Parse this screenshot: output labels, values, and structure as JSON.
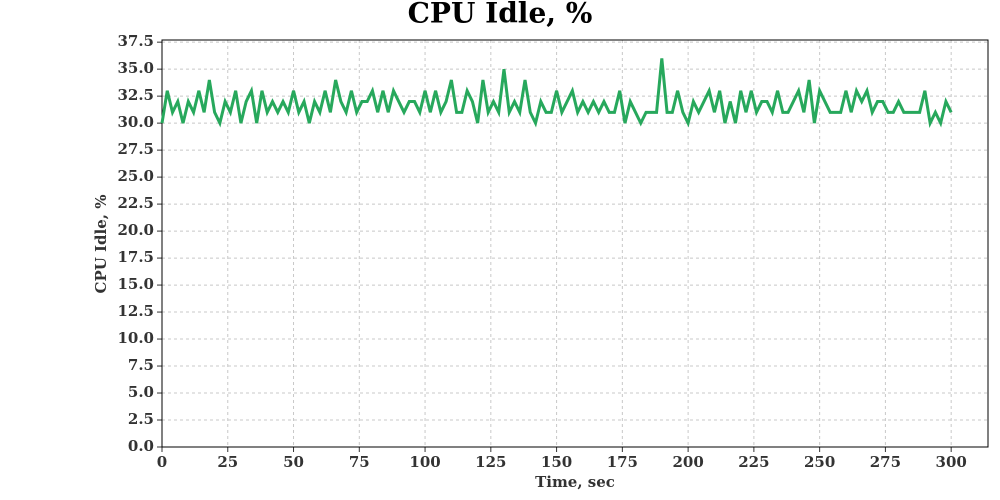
{
  "chart_data": {
    "type": "line",
    "title": "CPU Idle, %",
    "x_label": "Time, sec",
    "y_label": "CPU Idle, %",
    "x": [
      0,
      2,
      4,
      6,
      8,
      10,
      12,
      14,
      16,
      18,
      20,
      22,
      24,
      26,
      28,
      30,
      32,
      34,
      36,
      38,
      40,
      42,
      44,
      46,
      48,
      50,
      52,
      54,
      56,
      58,
      60,
      62,
      64,
      66,
      68,
      70,
      72,
      74,
      76,
      78,
      80,
      82,
      84,
      86,
      88,
      90,
      92,
      94,
      96,
      98,
      100,
      102,
      104,
      106,
      108,
      110,
      112,
      114,
      116,
      118,
      120,
      122,
      124,
      126,
      128,
      130,
      132,
      134,
      136,
      138,
      140,
      142,
      144,
      146,
      148,
      150,
      152,
      154,
      156,
      158,
      160,
      162,
      164,
      166,
      168,
      170,
      172,
      174,
      176,
      178,
      180,
      182,
      184,
      186,
      188,
      190,
      192,
      194,
      196,
      198,
      200,
      202,
      204,
      206,
      208,
      210,
      212,
      214,
      216,
      218,
      220,
      222,
      224,
      226,
      228,
      230,
      232,
      234,
      236,
      238,
      240,
      242,
      244,
      246,
      248,
      250,
      252,
      254,
      256,
      258,
      260,
      262,
      264,
      266,
      268,
      270,
      272,
      274,
      276,
      278,
      280,
      282,
      284,
      286,
      288,
      290,
      292,
      294,
      296,
      298,
      300
    ],
    "series": [
      {
        "name": "CPU Idle",
        "color": "#27a85c",
        "values": [
          30,
          33,
          31,
          32,
          30,
          32,
          31,
          33,
          31,
          34,
          31,
          30,
          32,
          31,
          33,
          30,
          32,
          33,
          30,
          33,
          31,
          32,
          31,
          32,
          31,
          33,
          31,
          32,
          30,
          32,
          31,
          33,
          31,
          34,
          32,
          31,
          33,
          31,
          32,
          32,
          33,
          31,
          33,
          31,
          33,
          32,
          31,
          32,
          32,
          31,
          33,
          31,
          33,
          31,
          32,
          34,
          31,
          31,
          33,
          32,
          30,
          34,
          31,
          32,
          31,
          35,
          31,
          32,
          31,
          34,
          31,
          30,
          32,
          31,
          31,
          33,
          31,
          32,
          33,
          31,
          32,
          31,
          32,
          31,
          32,
          31,
          31,
          33,
          30,
          32,
          31,
          30,
          31,
          31,
          31,
          36,
          31,
          31,
          33,
          31,
          30,
          32,
          31,
          32,
          33,
          31,
          33,
          30,
          32,
          30,
          33,
          31,
          33,
          31,
          32,
          32,
          31,
          33,
          31,
          31,
          32,
          33,
          31,
          34,
          30,
          33,
          32,
          31,
          31,
          31,
          33,
          31,
          33,
          32,
          33,
          31,
          32,
          32,
          31,
          31,
          32,
          31,
          31,
          31,
          31,
          33,
          30,
          31,
          30,
          32,
          31
        ]
      }
    ],
    "xlim": [
      0,
      314
    ],
    "ylim": [
      0,
      37.7
    ],
    "xticks": [
      0,
      25,
      50,
      75,
      100,
      125,
      150,
      175,
      200,
      225,
      250,
      275,
      300
    ],
    "yticks": [
      {
        "value": 0,
        "label": "0.0"
      },
      2.5,
      {
        "value": 5,
        "label": "5.0"
      },
      7.5,
      {
        "value": 10,
        "label": "10.0"
      },
      12.5,
      {
        "value": 15,
        "label": "15.0"
      },
      17.5,
      {
        "value": 20,
        "label": "20.0"
      },
      22.5,
      {
        "value": 25,
        "label": "25.0"
      },
      27.5,
      {
        "value": 30,
        "label": "30.0"
      },
      32.5,
      {
        "value": 35,
        "label": "35.0"
      },
      37.5
    ],
    "grid": true
  }
}
